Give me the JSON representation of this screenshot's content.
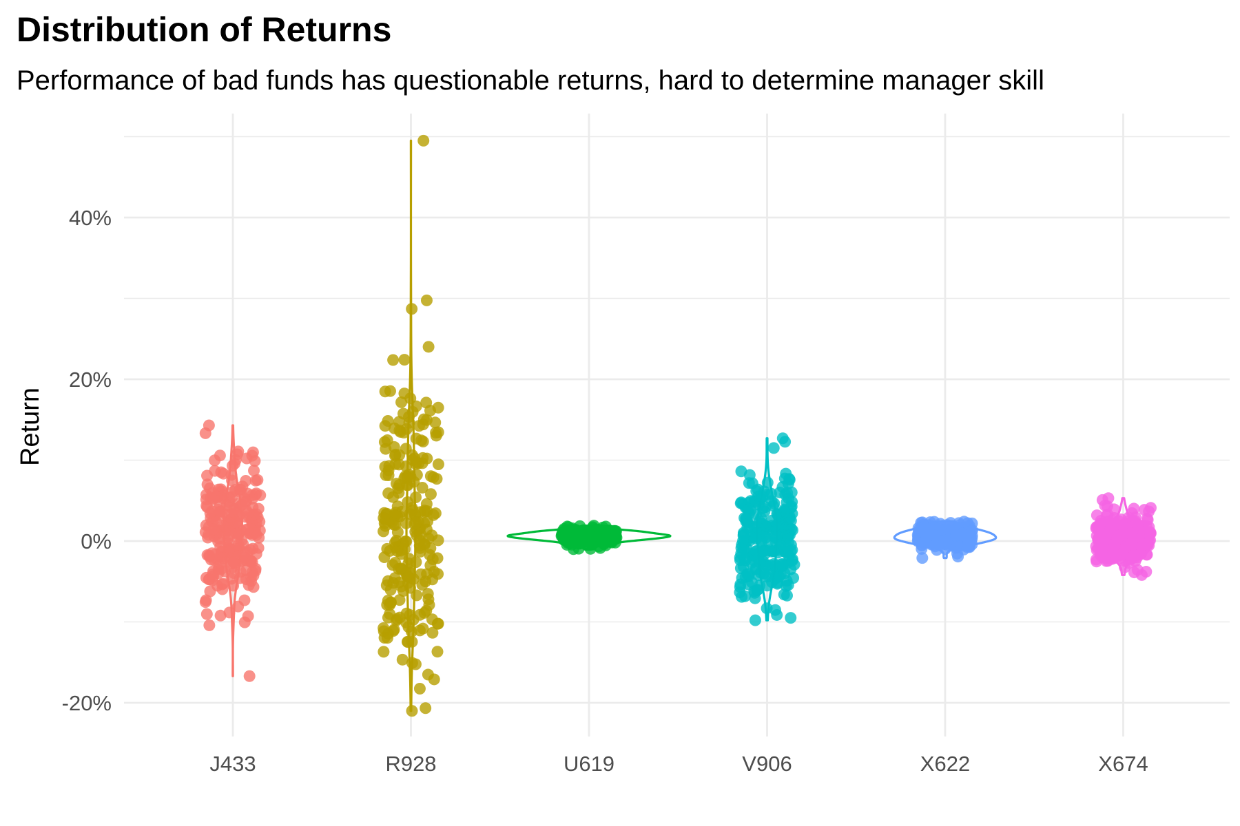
{
  "chart_data": {
    "type": "violin",
    "title": "Distribution of Returns",
    "subtitle": "Performance of bad funds has questionable returns, hard to determine manager skill",
    "xlabel": "",
    "ylabel": "Return",
    "ylim": [
      -0.24,
      0.5
    ],
    "y_ticks": [
      {
        "value": -0.2,
        "label": "-20%"
      },
      {
        "value": 0.0,
        "label": "0%"
      },
      {
        "value": 0.2,
        "label": "20%"
      },
      {
        "value": 0.4,
        "label": "40%"
      }
    ],
    "y_minor_ticks": [
      -0.1,
      0.1,
      0.3,
      0.5
    ],
    "grid": true,
    "legend": "none",
    "categories": [
      "J433",
      "R928",
      "U619",
      "V906",
      "X622",
      "X674"
    ],
    "series": [
      {
        "category": "J433",
        "color": "#F8766D",
        "min": -0.167,
        "max": 0.143,
        "sd": 0.048,
        "center": 0.012,
        "n": 240
      },
      {
        "category": "R928",
        "color": "#B79F00",
        "min": -0.21,
        "max": 0.495,
        "sd": 0.095,
        "center": 0.02,
        "n": 240
      },
      {
        "category": "U619",
        "color": "#00BA38",
        "min": -0.01,
        "max": 0.019,
        "sd": 0.006,
        "center": 0.006,
        "n": 240
      },
      {
        "category": "V906",
        "color": "#00BFC4",
        "min": -0.098,
        "max": 0.127,
        "sd": 0.042,
        "center": 0.005,
        "n": 240
      },
      {
        "category": "X622",
        "color": "#619CFF",
        "min": -0.021,
        "max": 0.024,
        "sd": 0.008,
        "center": 0.006,
        "n": 240
      },
      {
        "category": "X674",
        "color": "#F564E3",
        "min": -0.042,
        "max": 0.053,
        "sd": 0.016,
        "center": 0.004,
        "n": 240
      }
    ]
  }
}
